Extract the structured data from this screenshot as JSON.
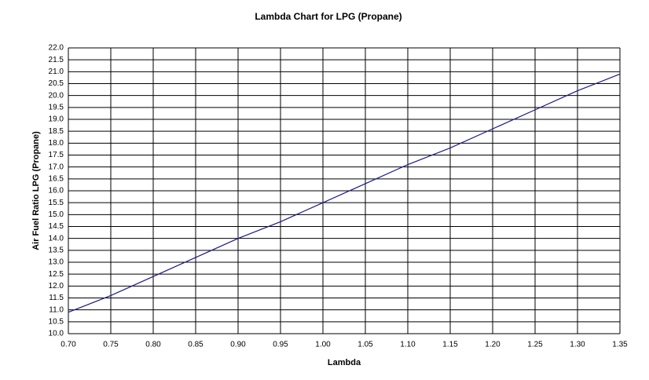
{
  "chart_data": {
    "type": "line",
    "title": "Lambda Chart for LPG (Propane)",
    "xlabel": "Lambda",
    "ylabel": "Air Fuel Ratio LPG (Propane)",
    "x": [
      0.7,
      0.75,
      0.8,
      0.85,
      0.9,
      0.95,
      1.0,
      1.05,
      1.1,
      1.15,
      1.2,
      1.25,
      1.3,
      1.35
    ],
    "series": [
      {
        "color": "#1a1a8c",
        "values": [
          10.9,
          11.6,
          12.4,
          13.2,
          14.0,
          14.7,
          15.5,
          16.3,
          17.1,
          17.8,
          18.6,
          19.4,
          20.2,
          20.9
        ]
      }
    ],
    "xlim": [
      0.7,
      1.35
    ],
    "xticks": [
      {
        "value": 0.7,
        "label": "0.70"
      },
      0.75,
      {
        "value": 0.8,
        "label": "0.80"
      },
      0.85,
      {
        "value": 0.9,
        "label": "0.90"
      },
      0.95,
      {
        "value": 1,
        "label": "1.00"
      },
      1.05,
      {
        "value": 1.1,
        "label": "1.10"
      },
      1.15,
      {
        "value": 1.2,
        "label": "1.20"
      },
      1.25,
      {
        "value": 1.3,
        "label": "1.30"
      },
      1.35
    ],
    "ylim": [
      10,
      22
    ],
    "yticks": [
      {
        "value": 10,
        "label": "10.0"
      },
      10.5,
      {
        "value": 11,
        "label": "11.0"
      },
      11.5,
      {
        "value": 12,
        "label": "12.0"
      },
      12.5,
      {
        "value": 13,
        "label": "13.0"
      },
      13.5,
      {
        "value": 14,
        "label": "14.0"
      },
      14.5,
      {
        "value": 15,
        "label": "15.0"
      },
      15.5,
      {
        "value": 16,
        "label": "16.0"
      },
      16.5,
      {
        "value": 17,
        "label": "17.0"
      },
      17.5,
      {
        "value": 18,
        "label": "18.0"
      },
      18.5,
      {
        "value": 19,
        "label": "19.0"
      },
      19.5,
      {
        "value": 20,
        "label": "20.0"
      },
      20.5,
      {
        "value": 21,
        "label": "21.0"
      },
      21.5,
      {
        "value": 22,
        "label": "22.0"
      }
    ],
    "grid": true
  }
}
